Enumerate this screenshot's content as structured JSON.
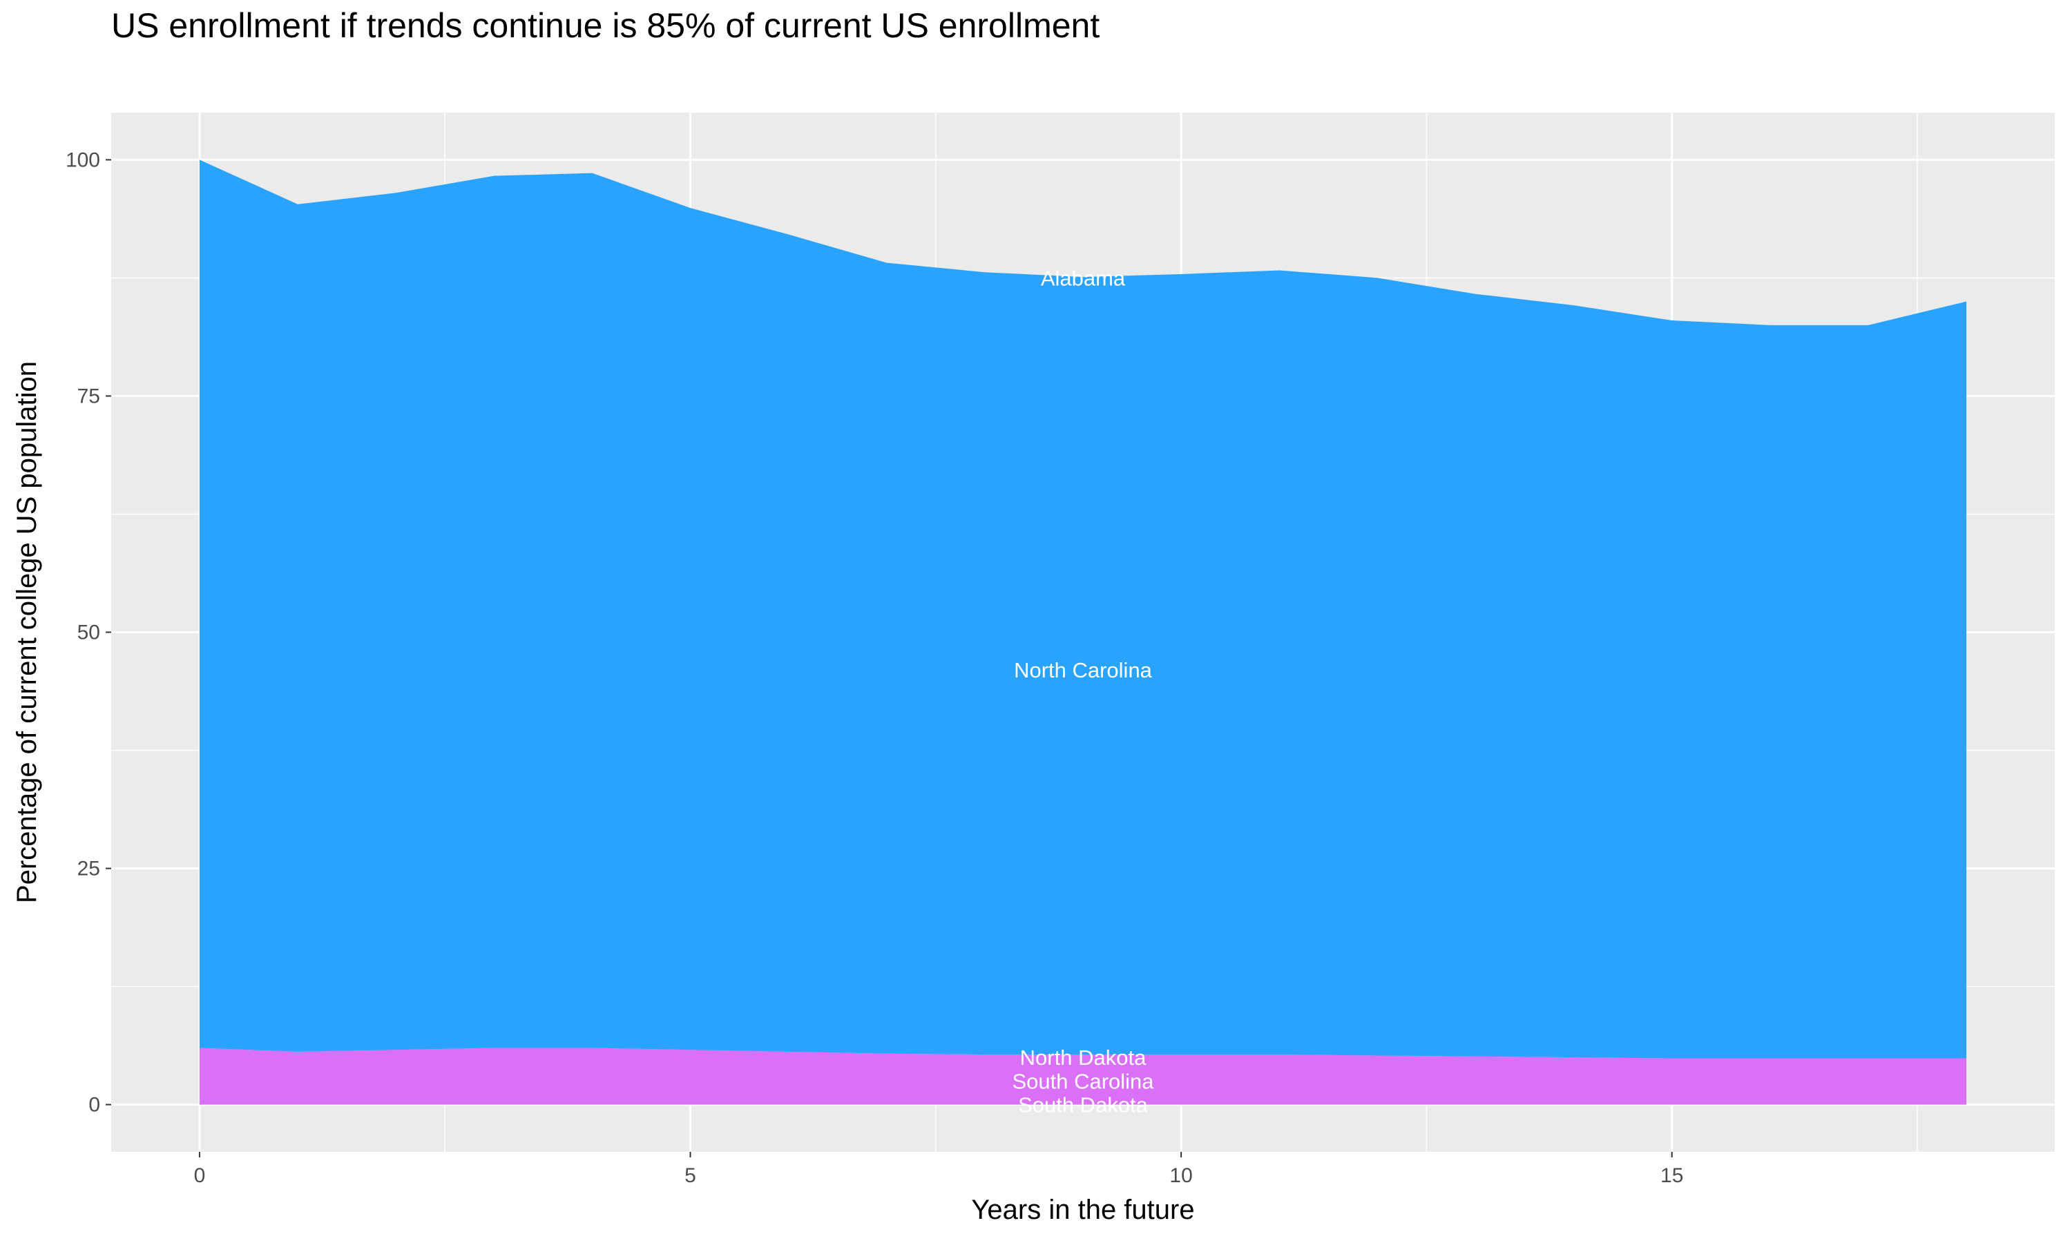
{
  "chart_data": {
    "type": "area",
    "stacked": true,
    "title": "US enrollment if trends continue is 85% of current US enrollment",
    "xlabel": "Years in the future",
    "ylabel": "Percentage of current college US population",
    "xlim": [
      -0.9,
      18.9
    ],
    "ylim": [
      -5,
      105
    ],
    "x_ticks": [
      0,
      5,
      10,
      15
    ],
    "y_ticks": [
      0,
      25,
      50,
      75,
      100
    ],
    "grid": true,
    "x": [
      0,
      1,
      2,
      3,
      4,
      5,
      6,
      7,
      8,
      9,
      10,
      11,
      12,
      13,
      14,
      15,
      16,
      17,
      18
    ],
    "series": [
      {
        "color": "#DA6FF8",
        "values": [
          6.0,
          5.6,
          5.8,
          6.0,
          6.0,
          5.8,
          5.6,
          5.4,
          5.3,
          5.3,
          5.3,
          5.3,
          5.2,
          5.1,
          5.0,
          4.9,
          4.9,
          4.9,
          4.9
        ]
      },
      {
        "color": "#29A3FE",
        "values": [
          94.0,
          89.7,
          90.7,
          92.3,
          92.6,
          89.1,
          86.5,
          83.7,
          82.8,
          82.3,
          82.6,
          83.0,
          82.3,
          80.7,
          79.6,
          78.1,
          77.6,
          77.6,
          80.1
        ]
      }
    ],
    "annotations": [
      {
        "text": "Alabama",
        "x": 9,
        "y": 87.5
      },
      {
        "text": "North Carolina",
        "x": 9,
        "y": 46
      },
      {
        "text": "North Dakota",
        "x": 9,
        "y": 5
      },
      {
        "text": "South Carolina",
        "x": 9,
        "y": 2.5
      },
      {
        "text": "South Dakota",
        "x": 9,
        "y": 0
      }
    ],
    "panel_color": "#EBEBEB",
    "grid_color": "#FFFFFF"
  }
}
